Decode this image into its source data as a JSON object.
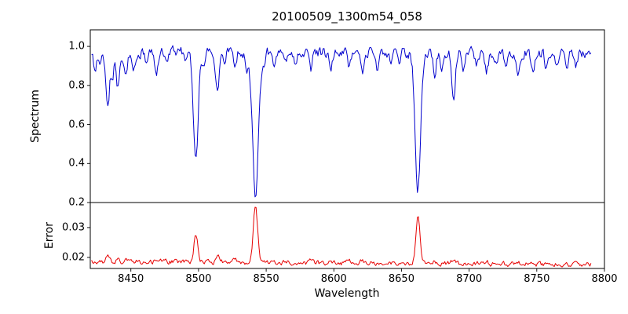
{
  "chart_data": {
    "type": "line",
    "title": "20100509_1300m54_058",
    "xlabel": "Wavelength",
    "grid": false,
    "legend": "none",
    "xlim": [
      8420,
      8800
    ],
    "xticks": [
      "8450",
      "8500",
      "8550",
      "8600",
      "8650",
      "8700",
      "8750",
      "8800"
    ],
    "x_start": 8421,
    "x_end": 8790,
    "x_step": 0.75,
    "seed": 20100509,
    "panels": [
      {
        "name": "spectrum",
        "ylabel": "Spectrum",
        "color": "#0000cd",
        "ylim": [
          0.2,
          1.085
        ],
        "yticks": [
          "0.2",
          "0.4",
          "0.6",
          "0.8",
          "1.0"
        ],
        "continuum": 0.968,
        "noise_amp": 0.024,
        "noise_ar": 0.5,
        "absorption_lines": [
          {
            "center": 8498.0,
            "depth": 0.56,
            "width": 1.7
          },
          {
            "center": 8542.1,
            "depth": 0.73,
            "width": 2.2
          },
          {
            "center": 8662.1,
            "depth": 0.69,
            "width": 2.0
          },
          {
            "center": 8423.5,
            "depth": 0.1,
            "width": 1.1
          },
          {
            "center": 8427.0,
            "depth": 0.07,
            "width": 1.0
          },
          {
            "center": 8433.0,
            "depth": 0.27,
            "width": 1.3
          },
          {
            "center": 8436.5,
            "depth": 0.12,
            "width": 1.0
          },
          {
            "center": 8440.5,
            "depth": 0.17,
            "width": 1.1
          },
          {
            "center": 8446.0,
            "depth": 0.13,
            "width": 1.1
          },
          {
            "center": 8452.0,
            "depth": 0.08,
            "width": 1.0
          },
          {
            "center": 8462.0,
            "depth": 0.07,
            "width": 1.0
          },
          {
            "center": 8468.5,
            "depth": 0.12,
            "width": 1.2
          },
          {
            "center": 8476.0,
            "depth": 0.06,
            "width": 1.0
          },
          {
            "center": 8490.0,
            "depth": 0.05,
            "width": 1.0
          },
          {
            "center": 8504.0,
            "depth": 0.06,
            "width": 1.0
          },
          {
            "center": 8514.0,
            "depth": 0.17,
            "width": 1.3
          },
          {
            "center": 8519.0,
            "depth": 0.08,
            "width": 1.0
          },
          {
            "center": 8527.0,
            "depth": 0.1,
            "width": 1.1
          },
          {
            "center": 8536.0,
            "depth": 0.07,
            "width": 1.0
          },
          {
            "center": 8548.0,
            "depth": 0.06,
            "width": 1.0
          },
          {
            "center": 8556.0,
            "depth": 0.06,
            "width": 1.0
          },
          {
            "center": 8564.0,
            "depth": 0.05,
            "width": 1.0
          },
          {
            "center": 8572.0,
            "depth": 0.06,
            "width": 1.0
          },
          {
            "center": 8583.0,
            "depth": 0.09,
            "width": 1.1
          },
          {
            "center": 8598.0,
            "depth": 0.07,
            "width": 1.0
          },
          {
            "center": 8611.0,
            "depth": 0.09,
            "width": 1.1
          },
          {
            "center": 8621.0,
            "depth": 0.1,
            "width": 1.1
          },
          {
            "center": 8632.0,
            "depth": 0.07,
            "width": 1.0
          },
          {
            "center": 8642.0,
            "depth": 0.05,
            "width": 1.0
          },
          {
            "center": 8648.0,
            "depth": 0.06,
            "width": 1.0
          },
          {
            "center": 8674.5,
            "depth": 0.11,
            "width": 1.1
          },
          {
            "center": 8680.0,
            "depth": 0.08,
            "width": 1.0
          },
          {
            "center": 8688.5,
            "depth": 0.26,
            "width": 1.3
          },
          {
            "center": 8696.0,
            "depth": 0.08,
            "width": 1.0
          },
          {
            "center": 8705.0,
            "depth": 0.06,
            "width": 1.0
          },
          {
            "center": 8713.0,
            "depth": 0.09,
            "width": 1.1
          },
          {
            "center": 8720.0,
            "depth": 0.05,
            "width": 1.0
          },
          {
            "center": 8727.0,
            "depth": 0.07,
            "width": 1.0
          },
          {
            "center": 8736.0,
            "depth": 0.09,
            "width": 1.1
          },
          {
            "center": 8747.0,
            "depth": 0.11,
            "width": 1.1
          },
          {
            "center": 8757.0,
            "depth": 0.09,
            "width": 1.0
          },
          {
            "center": 8765.0,
            "depth": 0.07,
            "width": 1.0
          },
          {
            "center": 8772.0,
            "depth": 0.07,
            "width": 1.0
          },
          {
            "center": 8779.0,
            "depth": 0.06,
            "width": 1.0
          }
        ]
      },
      {
        "name": "error",
        "ylabel": "Error",
        "color": "#e60000",
        "ylim": [
          0.0163,
          0.0384
        ],
        "yticks": [
          "0.02",
          "0.03"
        ],
        "baseline_start": 0.0187,
        "baseline_end": 0.0176,
        "noise_amp": 0.0007,
        "noise_ar": 0.45,
        "peaks": [
          {
            "center": 8498.0,
            "amp": 0.0095,
            "width": 1.3
          },
          {
            "center": 8542.1,
            "amp": 0.019,
            "width": 1.6
          },
          {
            "center": 8662.1,
            "amp": 0.0155,
            "width": 1.5
          },
          {
            "center": 8433.0,
            "amp": 0.0022,
            "width": 1.3
          },
          {
            "center": 8440.5,
            "amp": 0.0016,
            "width": 1.1
          },
          {
            "center": 8446.0,
            "amp": 0.0012,
            "width": 1.0
          },
          {
            "center": 8468.5,
            "amp": 0.001,
            "width": 1.1
          },
          {
            "center": 8514.0,
            "amp": 0.002,
            "width": 1.2
          },
          {
            "center": 8527.0,
            "amp": 0.001,
            "width": 1.0
          },
          {
            "center": 8583.0,
            "amp": 0.0008,
            "width": 1.0
          },
          {
            "center": 8611.0,
            "amp": 0.001,
            "width": 1.0
          },
          {
            "center": 8621.0,
            "amp": 0.0009,
            "width": 1.0
          },
          {
            "center": 8674.5,
            "amp": 0.0009,
            "width": 1.0
          },
          {
            "center": 8688.5,
            "amp": 0.0014,
            "width": 1.2
          },
          {
            "center": 8713.0,
            "amp": 0.0008,
            "width": 1.0
          },
          {
            "center": 8736.0,
            "amp": 0.0008,
            "width": 1.0
          },
          {
            "center": 8747.0,
            "amp": 0.001,
            "width": 1.0
          },
          {
            "center": 8757.0,
            "amp": 0.0008,
            "width": 1.0
          }
        ]
      }
    ]
  }
}
